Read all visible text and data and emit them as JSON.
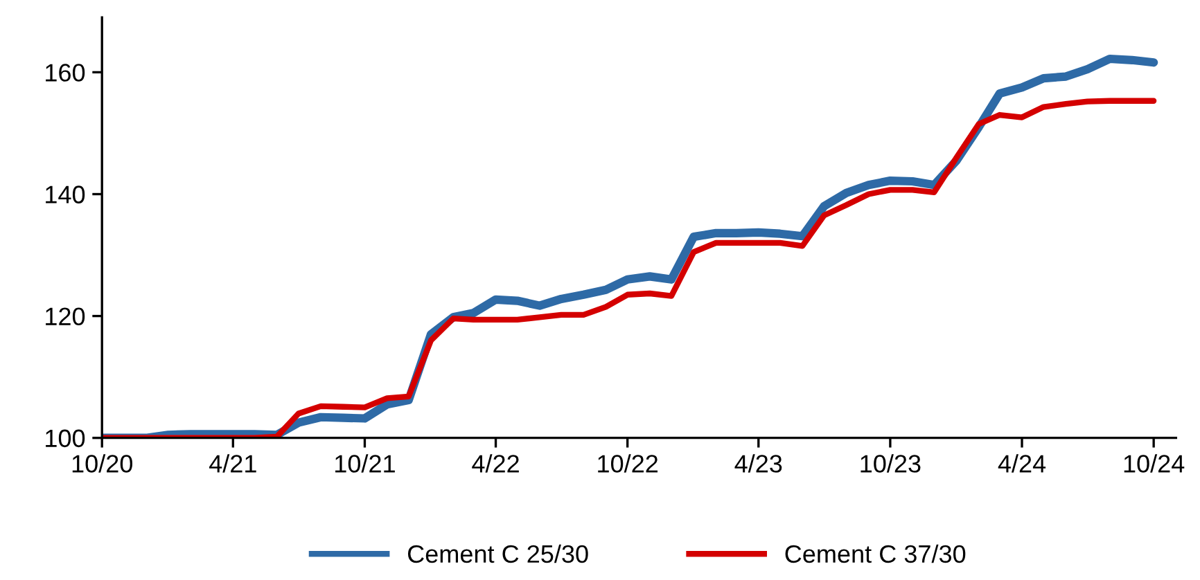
{
  "chart_data": {
    "type": "line",
    "x": [
      "2020-10",
      "2020-11",
      "2020-12",
      "2021-01",
      "2021-02",
      "2021-03",
      "2021-04",
      "2021-05",
      "2021-06",
      "2021-07",
      "2021-08",
      "2021-09",
      "2021-10",
      "2021-11",
      "2021-12",
      "2022-01",
      "2022-02",
      "2022-03",
      "2022-04",
      "2022-05",
      "2022-06",
      "2022-07",
      "2022-08",
      "2022-09",
      "2022-10",
      "2022-11",
      "2022-12",
      "2023-01",
      "2023-02",
      "2023-03",
      "2023-04",
      "2023-05",
      "2023-06",
      "2023-07",
      "2023-08",
      "2023-09",
      "2023-10",
      "2023-11",
      "2023-12",
      "2024-01",
      "2024-02",
      "2024-03",
      "2024-04",
      "2024-05",
      "2024-06",
      "2024-07",
      "2024-08",
      "2024-09",
      "2024-10"
    ],
    "series": [
      {
        "name": "Cement C 25/30",
        "color": "#2e6aa6",
        "values": [
          100,
          100,
          100,
          100.5,
          100.6,
          100.6,
          100.6,
          100.6,
          100.5,
          102.5,
          103.4,
          103.3,
          103.2,
          105.5,
          106.2,
          117,
          119.8,
          120.5,
          122.7,
          122.5,
          121.7,
          122.8,
          123.5,
          124.3,
          126,
          126.5,
          126,
          133,
          133.6,
          133.6,
          133.7,
          133.5,
          133.1,
          138,
          140.2,
          141.5,
          142.2,
          142.1,
          141.5,
          145.5,
          151,
          156.5,
          157.5,
          159,
          159.3,
          160.5,
          162.2,
          162,
          161.6
        ]
      },
      {
        "name": "Cement C 37/30",
        "color": "#d40000",
        "values": [
          100,
          100,
          100,
          100,
          100,
          100,
          100,
          100,
          100.2,
          104,
          105.2,
          105.1,
          105,
          106.5,
          106.8,
          116,
          119.6,
          119.4,
          119.4,
          119.4,
          119.8,
          120.2,
          120.2,
          121.5,
          123.5,
          123.7,
          123.3,
          130.5,
          132,
          132,
          132,
          132,
          131.5,
          136.5,
          138.2,
          140,
          140.7,
          140.7,
          140.3,
          146,
          151.5,
          153,
          152.6,
          154.3,
          154.8,
          155.2,
          155.3,
          155.3,
          155.3
        ]
      }
    ],
    "xlim": [
      "2020-10",
      "2024-11"
    ],
    "xticks": [
      {
        "value": "2020-10",
        "label": "10/20"
      },
      {
        "value": "2021-04",
        "label": "4/21"
      },
      {
        "value": "2021-10",
        "label": "10/21"
      },
      {
        "value": "2022-04",
        "label": "4/22"
      },
      {
        "value": "2022-10",
        "label": "10/22"
      },
      {
        "value": "2023-04",
        "label": "4/23"
      },
      {
        "value": "2023-10",
        "label": "10/23"
      },
      {
        "value": "2024-04",
        "label": "4/24"
      },
      {
        "value": "2024-10",
        "label": "10/24"
      }
    ],
    "ylim": [
      100,
      169
    ],
    "yticks": [
      100,
      120,
      140,
      160
    ],
    "grid": false,
    "legend": "bottom",
    "marker": "none",
    "line_style": "solid"
  }
}
